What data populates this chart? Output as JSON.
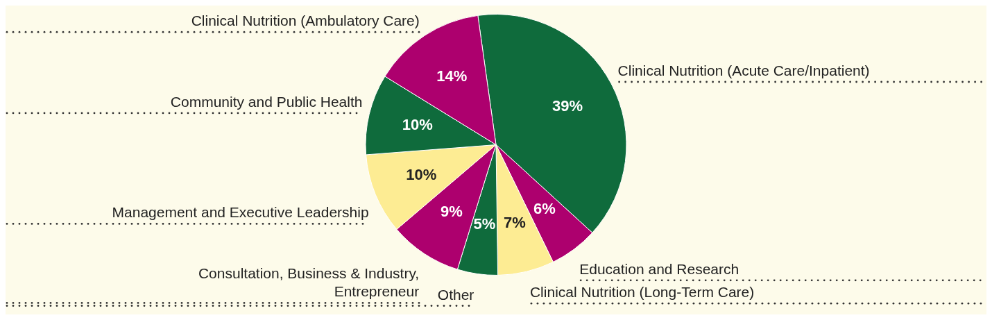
{
  "chart_data": {
    "type": "pie",
    "categories": [
      "Clinical Nutrition (Acute Care/Inpatient)",
      "Education and Research",
      "Clinical Nutrition (Long-Term Care)",
      "Other",
      "Consultation, Business & Industry, Entrepreneur",
      "Management and Executive Leadership",
      "Community and Public Health",
      "Clinical Nutrition (Ambulatory Care)"
    ],
    "values": [
      39,
      6,
      7,
      5,
      9,
      10,
      10,
      14
    ],
    "colors": [
      "#0f6b3c",
      "#ad006e",
      "#fdec93",
      "#0f6b3c",
      "#ad006e",
      "#fdec93",
      "#0f6b3c",
      "#ad006e"
    ],
    "value_labels": [
      "39%",
      "6%",
      "7%",
      "5%",
      "9%",
      "10%",
      "10%",
      "14%"
    ],
    "legend": false
  }
}
